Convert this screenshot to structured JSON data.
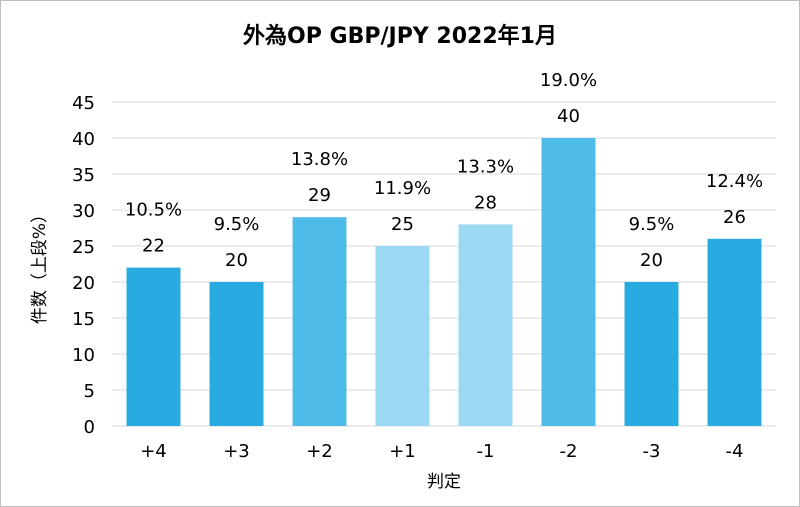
{
  "chart_data": {
    "type": "bar",
    "title": "外為OP GBP/JPY 2022年1月",
    "xlabel": "判定",
    "ylabel": "件数（上段%）",
    "categories": [
      "+4",
      "+3",
      "+2",
      "+1",
      "-1",
      "-2",
      "-3",
      "-4"
    ],
    "values": [
      22,
      20,
      29,
      25,
      28,
      40,
      20,
      26
    ],
    "percent_labels": [
      "10.5%",
      "9.5%",
      "13.8%",
      "11.9%",
      "13.3%",
      "19.0%",
      "9.5%",
      "12.4%"
    ],
    "bar_colors": [
      "#29abe2",
      "#29abe2",
      "#4fbbe8",
      "#9cd9f2",
      "#9cd9f2",
      "#4fbbe8",
      "#29abe2",
      "#29abe2"
    ],
    "ylim": [
      0,
      45
    ],
    "yticks": [
      0,
      5,
      10,
      15,
      20,
      25,
      30,
      35,
      40,
      45
    ],
    "grid": true,
    "legend": "none"
  }
}
